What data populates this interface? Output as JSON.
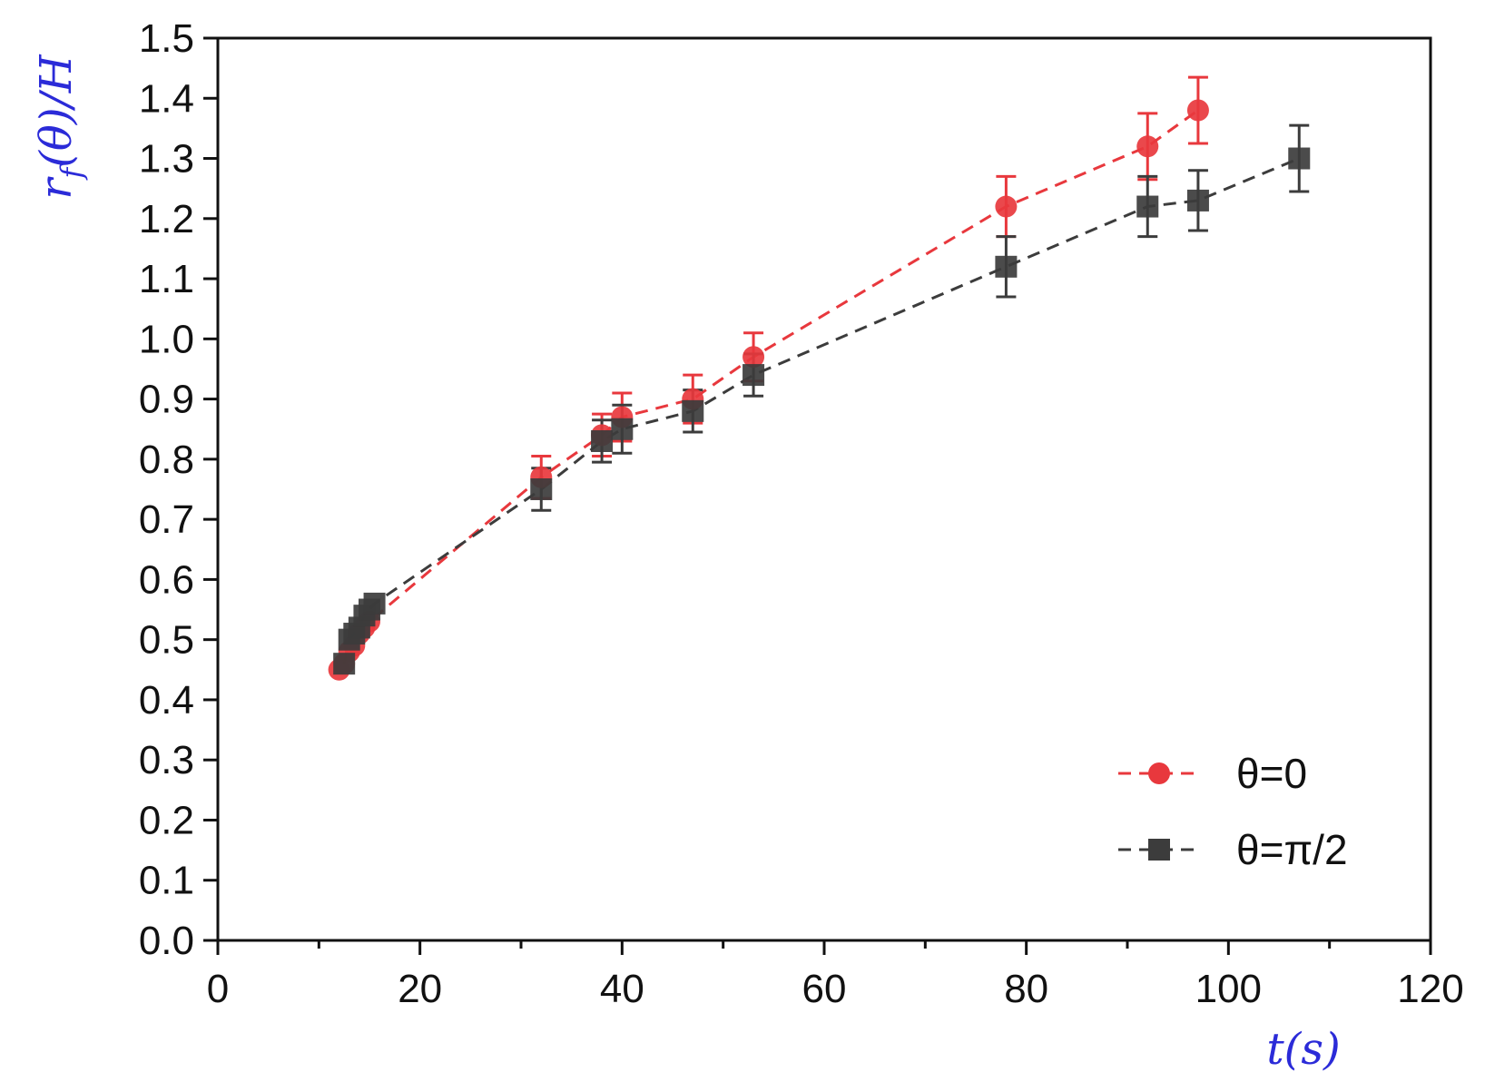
{
  "chart_data": {
    "type": "scatter",
    "title": "",
    "xlabel": "t(s)",
    "ylabel_parts": {
      "r": "r",
      "sub": "f",
      "rest": "(θ)/H"
    },
    "xlim": [
      0,
      120
    ],
    "ylim": [
      0.0,
      1.5
    ],
    "x_ticks": [
      0,
      20,
      40,
      60,
      80,
      100,
      120
    ],
    "x_tick_labels": [
      "0",
      "20",
      "40",
      "60",
      "80",
      "100",
      "120"
    ],
    "y_ticks": [
      0.0,
      0.1,
      0.2,
      0.3,
      0.4,
      0.5,
      0.6,
      0.7,
      0.8,
      0.9,
      1.0,
      1.1,
      1.2,
      1.3,
      1.4,
      1.5
    ],
    "y_tick_labels": [
      "0.0",
      "0.1",
      "0.2",
      "0.3",
      "0.4",
      "0.5",
      "0.6",
      "0.7",
      "0.8",
      "0.9",
      "1.0",
      "1.1",
      "1.2",
      "1.3",
      "1.4",
      "1.5"
    ],
    "grid": false,
    "legend_position": "bottom-right",
    "series": [
      {
        "name": "θ=0",
        "marker": "circle",
        "color": "#e8383d",
        "line": "dashed",
        "x": [
          12,
          12.5,
          13,
          13.5,
          14,
          14.5,
          15,
          32,
          38,
          40,
          47,
          53,
          78,
          92,
          97
        ],
        "y": [
          0.45,
          0.46,
          0.48,
          0.49,
          0.51,
          0.52,
          0.53,
          0.77,
          0.84,
          0.87,
          0.9,
          0.97,
          1.22,
          1.32,
          1.38
        ],
        "error": [
          0,
          0,
          0,
          0,
          0,
          0,
          0,
          0.035,
          0.035,
          0.04,
          0.04,
          0.04,
          0.05,
          0.055,
          0.055
        ]
      },
      {
        "name": "θ=π/2",
        "marker": "square",
        "color": "#3c3c3c",
        "line": "dashed",
        "x": [
          12.5,
          13,
          13.5,
          14,
          14.5,
          15,
          15.5,
          32,
          38,
          40,
          47,
          53,
          78,
          92,
          97,
          107
        ],
        "y": [
          0.46,
          0.5,
          0.51,
          0.52,
          0.54,
          0.55,
          0.56,
          0.75,
          0.83,
          0.85,
          0.88,
          0.94,
          1.12,
          1.22,
          1.23,
          1.3
        ],
        "error": [
          0,
          0,
          0,
          0,
          0,
          0,
          0,
          0.035,
          0.035,
          0.04,
          0.035,
          0.035,
          0.05,
          0.05,
          0.05,
          0.055
        ]
      }
    ]
  }
}
